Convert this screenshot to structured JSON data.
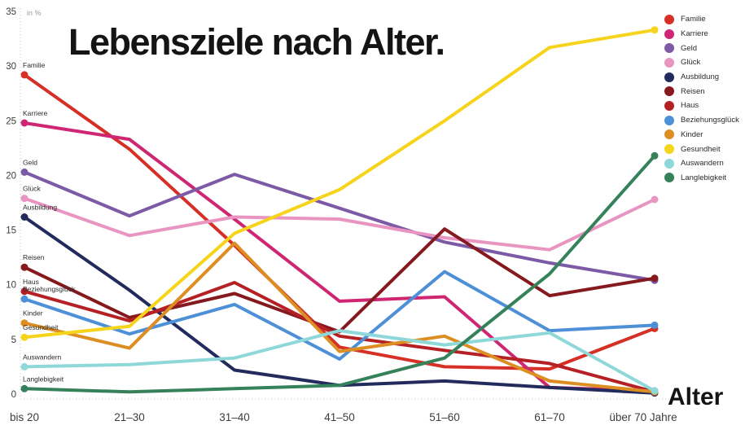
{
  "title": "Lebensziele nach Alter.",
  "unit_label": "in %",
  "x_axis_title": "Alter",
  "chart_data": {
    "type": "line",
    "title": "Lebensziele nach Alter.",
    "xlabel": "Alter",
    "ylabel": "in %",
    "ylim": [
      0,
      35
    ],
    "y_ticks": [
      0,
      5,
      10,
      15,
      20,
      25,
      30,
      35
    ],
    "grid": false,
    "legend_position": "top-right",
    "categories": [
      "bis 20",
      "21–30",
      "31–40",
      "41–50",
      "51–60",
      "61–70",
      "über 70 Jahre"
    ],
    "series": [
      {
        "name": "Familie",
        "color": "#d63026",
        "values": [
          29.2,
          22.4,
          13.6,
          4.3,
          2.5,
          2.3,
          6.0
        ]
      },
      {
        "name": "Karriere",
        "color": "#cf2673",
        "values": [
          24.8,
          23.3,
          16.0,
          8.5,
          8.9,
          0.6,
          0.3
        ]
      },
      {
        "name": "Geld",
        "color": "#7d5aa5",
        "values": [
          20.3,
          16.3,
          20.1,
          17.0,
          13.9,
          12.0,
          10.4
        ]
      },
      {
        "name": "Glück",
        "color": "#e995c1",
        "values": [
          17.9,
          14.5,
          16.2,
          16.0,
          14.3,
          13.2,
          17.8
        ]
      },
      {
        "name": "Ausbildung",
        "color": "#232a5c",
        "values": [
          16.2,
          9.5,
          2.2,
          0.8,
          1.2,
          0.6,
          0.1
        ]
      },
      {
        "name": "Reisen",
        "color": "#85191e",
        "values": [
          11.6,
          7.0,
          9.2,
          5.7,
          15.1,
          9.0,
          10.6
        ]
      },
      {
        "name": "Haus",
        "color": "#b52025",
        "values": [
          9.4,
          6.7,
          10.2,
          5.3,
          4.0,
          2.8,
          0.2
        ]
      },
      {
        "name": "Beziehungsglück",
        "color": "#4e90d8",
        "values": [
          8.7,
          5.5,
          8.2,
          3.2,
          11.2,
          5.8,
          6.3
        ]
      },
      {
        "name": "Kinder",
        "color": "#dd8e22",
        "values": [
          6.5,
          4.2,
          13.8,
          3.9,
          5.3,
          1.2,
          0.2
        ]
      },
      {
        "name": "Gesundheit",
        "color": "#f6d41b",
        "values": [
          5.2,
          6.2,
          14.7,
          18.7,
          25.0,
          31.7,
          33.3
        ]
      },
      {
        "name": "Auswandern",
        "color": "#8fd8da",
        "values": [
          2.5,
          2.7,
          3.3,
          5.8,
          4.5,
          5.6,
          0.3
        ]
      },
      {
        "name": "Langlebigkeit",
        "color": "#35815a",
        "values": [
          0.5,
          0.2,
          0.5,
          0.8,
          3.3,
          11.0,
          21.8
        ]
      }
    ]
  }
}
